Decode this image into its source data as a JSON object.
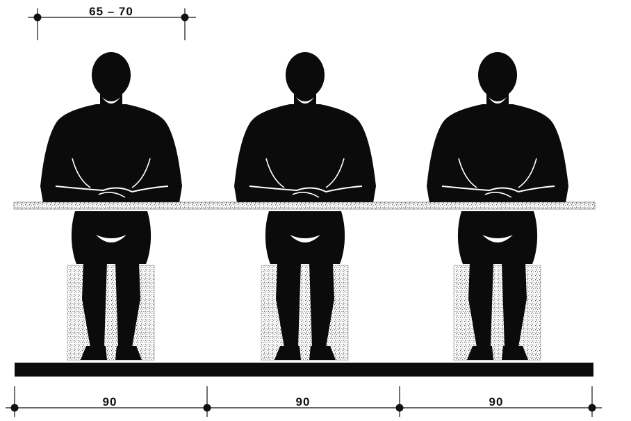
{
  "colors": {
    "ink": "#0b0b0b",
    "background": "#ffffff",
    "speckle": "#7a7a7a"
  },
  "top_dimension": {
    "label": "65 – 70"
  },
  "bottom_dimensions": [
    {
      "label": "90"
    },
    {
      "label": "90"
    },
    {
      "label": "90"
    }
  ],
  "figures": [
    {
      "icon": "seated-person-figure"
    },
    {
      "icon": "seated-person-figure"
    },
    {
      "icon": "seated-person-figure"
    }
  ]
}
